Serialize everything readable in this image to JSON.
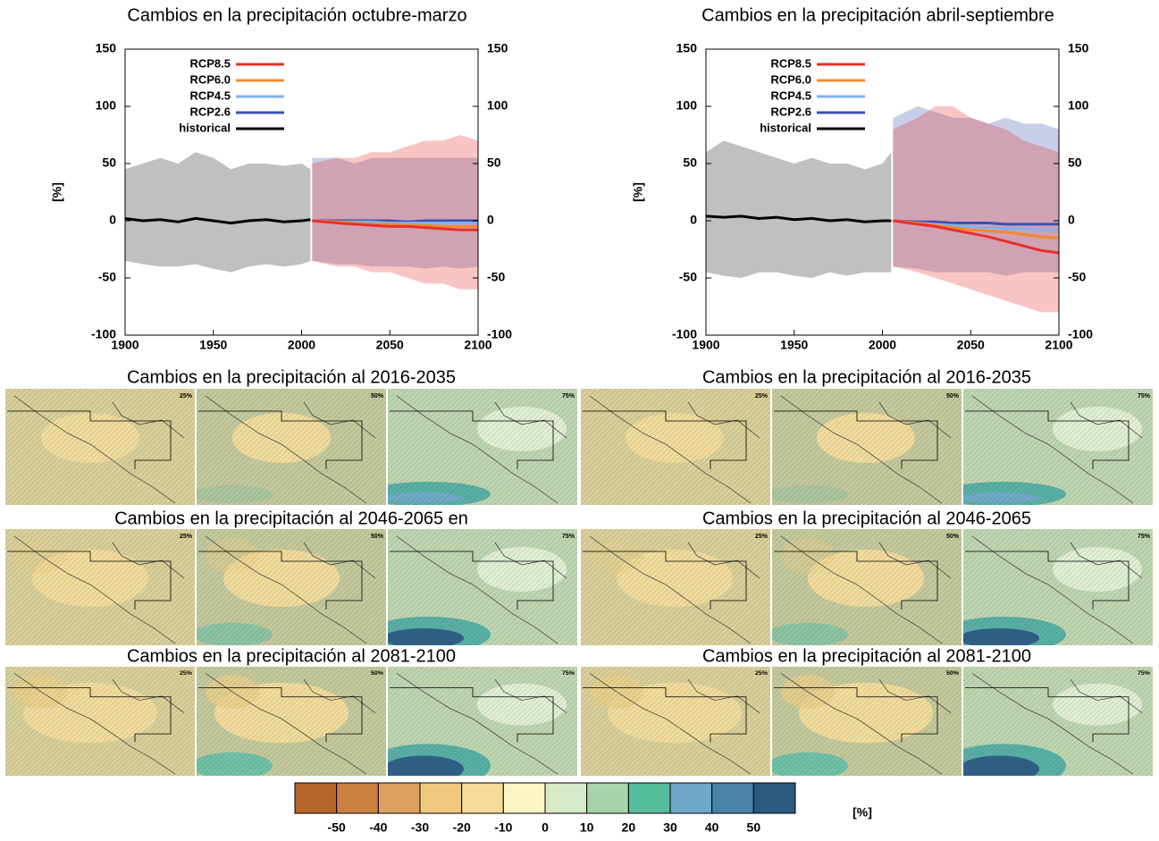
{
  "chart_data": [
    {
      "type": "line",
      "title": "Cambios en la precipitación octubre-marzo",
      "ylabel": "[%]",
      "xlim": [
        1900,
        2100
      ],
      "xticks": [
        1900,
        1950,
        2000,
        2050,
        2100
      ],
      "ylim": [
        -100,
        150
      ],
      "yticks": [
        -100,
        -50,
        0,
        50,
        100,
        150
      ],
      "y2lim": [
        -100,
        150
      ],
      "y2ticks": [
        -100,
        -50,
        0,
        50,
        100,
        150
      ],
      "legend": "upper left",
      "series": [
        {
          "name": "RCP8.5",
          "color": "#e8302a",
          "x": [
            2006,
            2020,
            2030,
            2040,
            2050,
            2060,
            2070,
            2080,
            2090,
            2100
          ],
          "values": [
            0,
            -2,
            -3,
            -4,
            -5,
            -5,
            -6,
            -7,
            -8,
            -8
          ],
          "low": [
            -35,
            -40,
            -40,
            -45,
            -45,
            -50,
            -55,
            -55,
            -60,
            -60
          ],
          "high": [
            50,
            55,
            55,
            60,
            60,
            65,
            70,
            70,
            75,
            70
          ]
        },
        {
          "name": "RCP6.0",
          "color": "#f08a30",
          "x": [
            2006,
            2020,
            2030,
            2040,
            2050,
            2060,
            2070,
            2080,
            2090,
            2100
          ],
          "values": [
            0,
            -1,
            -2,
            -3,
            -3,
            -4,
            -4,
            -5,
            -5,
            -5
          ]
        },
        {
          "name": "RCP4.5",
          "color": "#7fb2e6",
          "x": [
            2006,
            2020,
            2030,
            2040,
            2050,
            2060,
            2070,
            2080,
            2090,
            2100
          ],
          "values": [
            0,
            -1,
            -1,
            -1,
            -2,
            -2,
            -2,
            -2,
            -2,
            -2
          ]
        },
        {
          "name": "RCP2.6",
          "color": "#3a50b0",
          "x": [
            2006,
            2020,
            2030,
            2040,
            2050,
            2060,
            2070,
            2080,
            2090,
            2100
          ],
          "values": [
            0,
            0,
            0,
            0,
            0,
            -1,
            0,
            0,
            0,
            0
          ],
          "low": [
            -35,
            -38,
            -38,
            -40,
            -40,
            -40,
            -42,
            -40,
            -42,
            -40
          ],
          "high": [
            55,
            55,
            50,
            55,
            55,
            55,
            55,
            55,
            55,
            55
          ]
        },
        {
          "name": "historical",
          "color": "#000000",
          "x": [
            1900,
            1910,
            1920,
            1930,
            1940,
            1950,
            1960,
            1970,
            1980,
            1990,
            2000,
            2005
          ],
          "values": [
            2,
            0,
            1,
            -1,
            2,
            0,
            -2,
            0,
            1,
            -1,
            0,
            1
          ],
          "low": [
            -35,
            -38,
            -40,
            -40,
            -38,
            -42,
            -45,
            -40,
            -38,
            -40,
            -38,
            -35
          ],
          "high": [
            45,
            50,
            55,
            50,
            60,
            55,
            45,
            50,
            50,
            48,
            50,
            45
          ]
        }
      ]
    },
    {
      "type": "line",
      "title": "Cambios en la precipitación abril-septiembre",
      "ylabel": "[%]",
      "xlim": [
        1900,
        2100
      ],
      "xticks": [
        1900,
        1950,
        2000,
        2050,
        2100
      ],
      "ylim": [
        -100,
        150
      ],
      "yticks": [
        -100,
        -50,
        0,
        50,
        100,
        150
      ],
      "y2lim": [
        -100,
        150
      ],
      "y2ticks": [
        -100,
        -50,
        0,
        50,
        100,
        150
      ],
      "legend": "upper left",
      "series": [
        {
          "name": "RCP8.5",
          "color": "#e8302a",
          "x": [
            2006,
            2020,
            2030,
            2040,
            2050,
            2060,
            2070,
            2080,
            2090,
            2100
          ],
          "values": [
            0,
            -3,
            -5,
            -8,
            -11,
            -14,
            -18,
            -22,
            -26,
            -28
          ],
          "low": [
            -40,
            -45,
            -50,
            -55,
            -60,
            -65,
            -70,
            -75,
            -80,
            -80
          ],
          "high": [
            80,
            90,
            100,
            100,
            90,
            85,
            80,
            70,
            65,
            60
          ]
        },
        {
          "name": "RCP6.0",
          "color": "#f08a30",
          "x": [
            2006,
            2020,
            2030,
            2040,
            2050,
            2060,
            2070,
            2080,
            2090,
            2100
          ],
          "values": [
            0,
            -2,
            -4,
            -6,
            -8,
            -9,
            -10,
            -12,
            -14,
            -15
          ]
        },
        {
          "name": "RCP4.5",
          "color": "#7fb2e6",
          "x": [
            2006,
            2020,
            2030,
            2040,
            2050,
            2060,
            2070,
            2080,
            2090,
            2100
          ],
          "values": [
            0,
            -2,
            -3,
            -4,
            -5,
            -6,
            -7,
            -7,
            -8,
            -8
          ]
        },
        {
          "name": "RCP2.6",
          "color": "#3a50b0",
          "x": [
            2006,
            2020,
            2030,
            2040,
            2050,
            2060,
            2070,
            2080,
            2090,
            2100
          ],
          "values": [
            0,
            -1,
            -1,
            -2,
            -2,
            -2,
            -3,
            -3,
            -3,
            -3
          ],
          "low": [
            -40,
            -42,
            -45,
            -45,
            -45,
            -45,
            -48,
            -45,
            -45,
            -45
          ],
          "high": [
            90,
            100,
            95,
            90,
            90,
            85,
            90,
            85,
            85,
            80
          ]
        },
        {
          "name": "historical",
          "color": "#000000",
          "x": [
            1900,
            1910,
            1920,
            1930,
            1940,
            1950,
            1960,
            1970,
            1980,
            1990,
            2000,
            2005
          ],
          "values": [
            4,
            3,
            4,
            2,
            3,
            1,
            2,
            0,
            1,
            -1,
            0,
            0
          ],
          "low": [
            -45,
            -48,
            -50,
            -45,
            -45,
            -48,
            -50,
            -45,
            -48,
            -45,
            -45,
            -45
          ],
          "high": [
            60,
            70,
            65,
            60,
            55,
            50,
            55,
            50,
            50,
            45,
            50,
            60
          ]
        }
      ]
    },
    {
      "type": "colorbar",
      "label": "[%]",
      "xlim": [
        -60,
        60
      ],
      "xticks": [
        -50,
        -40,
        -30,
        -20,
        -10,
        0,
        10,
        20,
        30,
        40,
        50
      ],
      "colors": [
        "#b5652a",
        "#cc8040",
        "#dea060",
        "#f0c880",
        "#f6dc9a",
        "#fbf4c4",
        "#d6eac8",
        "#a6d6a8",
        "#56bd9c",
        "#6fa8c8",
        "#4a82a8",
        "#2a5a80"
      ]
    }
  ],
  "maps": {
    "percentiles": [
      "25%",
      "50%",
      "75%"
    ],
    "rows": [
      {
        "left": "Cambios en la precipitación al 2016-2035",
        "right": "Cambios en la precipitación al 2016-2035"
      },
      {
        "left": "Cambios en la precipitación al 2046-2065 en",
        "right": "Cambios en la precipitación al 2046-2065"
      },
      {
        "left": "Cambios en la precipitación al 2081-2100",
        "right": "Cambios en la precipitación al 2081-2100"
      }
    ]
  }
}
